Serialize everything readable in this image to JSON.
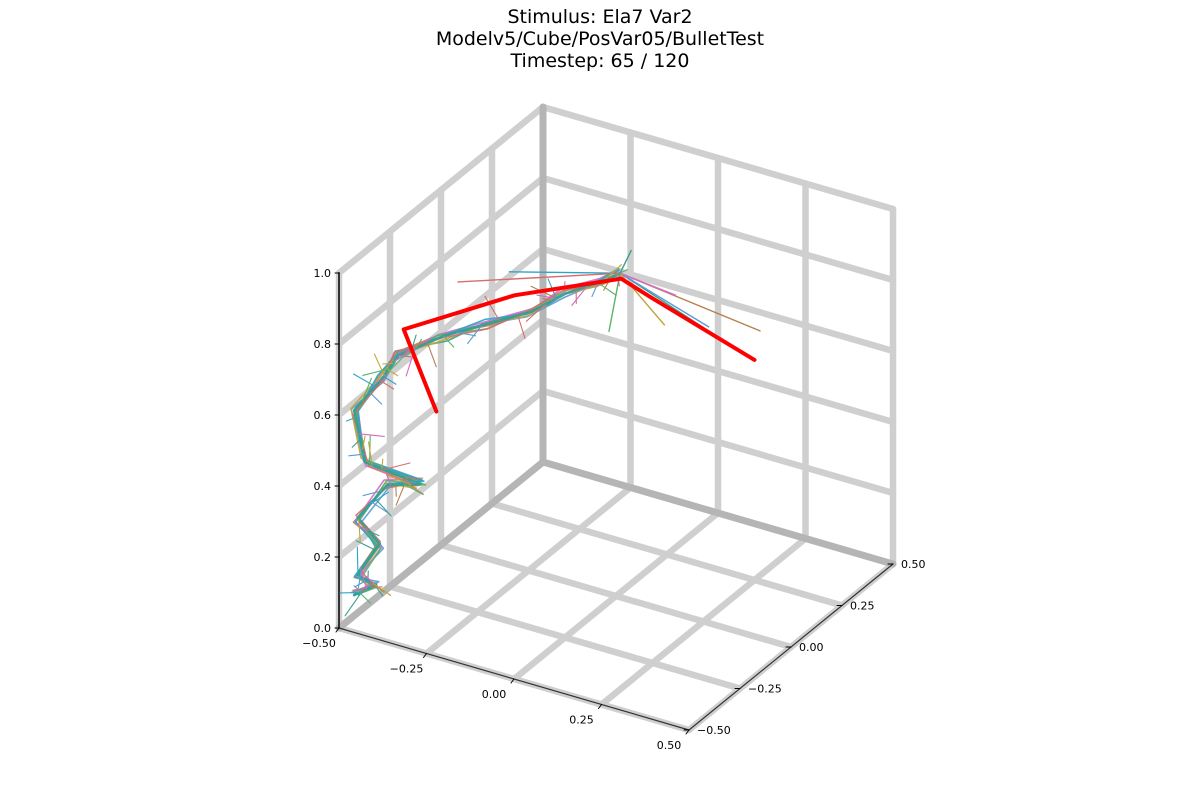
{
  "chart_data": {
    "type": "line",
    "projection": "3d",
    "title": {
      "line1": "Stimulus: Ela7 Var2",
      "line2": "Modelv5/Cube/PosVar05/BulletTest",
      "line3": "Timestep: 65 / 120"
    },
    "xlabel": "",
    "ylabel": "",
    "zlabel": "",
    "xlim": [
      -0.5,
      0.5
    ],
    "ylim": [
      -0.5,
      0.5
    ],
    "zlim": [
      0.0,
      1.0
    ],
    "x_ticks": [
      "−0.50",
      "−0.25",
      "0.00",
      "0.25",
      "0.50"
    ],
    "y_ticks": [
      "−0.50",
      "−0.25",
      "0.00",
      "0.25",
      "0.50"
    ],
    "z_ticks": [
      "0.0",
      "0.2",
      "0.4",
      "0.6",
      "0.8",
      "1.0"
    ],
    "grid": true,
    "legend": "none",
    "colors": {
      "grid": "#cfcfcf",
      "back_axes": "#b5b5b5",
      "target": "#ff0000",
      "ensemble": [
        "#3a9f8f",
        "#b5804f",
        "#5c9ad6",
        "#d36ac9",
        "#c1a43a",
        "#5bb36a",
        "#2aa6c8",
        "#d86d6d"
      ]
    },
    "target_path": [
      [
        -0.35,
        -0.28,
        0.55
      ],
      [
        -0.42,
        -0.32,
        0.78
      ],
      [
        -0.22,
        -0.12,
        0.84
      ],
      [
        -0.02,
        0.06,
        0.86
      ],
      [
        0.05,
        0.08,
        0.82
      ],
      [
        0.25,
        0.25,
        0.62
      ]
    ],
    "ensemble_spine": [
      [
        -0.48,
        -0.46,
        0.08
      ],
      [
        -0.44,
        -0.42,
        0.1
      ],
      [
        -0.47,
        -0.46,
        0.14
      ],
      [
        -0.43,
        -0.42,
        0.22
      ],
      [
        -0.47,
        -0.46,
        0.3
      ],
      [
        -0.42,
        -0.4,
        0.38
      ],
      [
        -0.36,
        -0.34,
        0.37
      ],
      [
        -0.46,
        -0.44,
        0.45
      ],
      [
        -0.48,
        -0.46,
        0.6
      ],
      [
        -0.43,
        -0.41,
        0.68
      ],
      [
        -0.4,
        -0.38,
        0.74
      ],
      [
        -0.32,
        -0.3,
        0.78
      ],
      [
        -0.24,
        -0.22,
        0.8
      ],
      [
        -0.16,
        -0.14,
        0.82
      ],
      [
        -0.1,
        -0.08,
        0.86
      ],
      [
        -0.04,
        -0.02,
        0.88
      ],
      [
        0.0,
        0.02,
        0.9
      ]
    ],
    "ensemble_members": 8
  }
}
